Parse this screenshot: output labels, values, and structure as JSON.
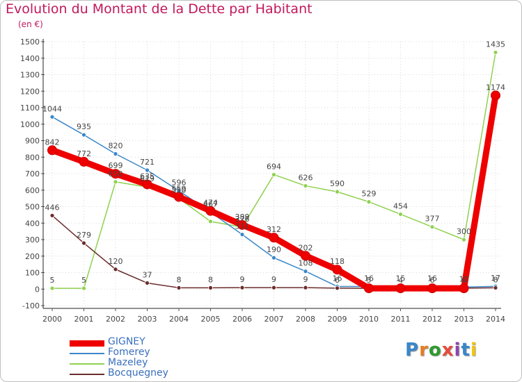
{
  "title": "Evolution du Montant de la Dette par Habitant",
  "subtitle": "(en €)",
  "logo": {
    "text": "Proxiti",
    "colors": [
      "#3a86c8",
      "#e67e22",
      "#2e9a2e",
      "#e74c3c",
      "#8e44ad",
      "#3a86c8",
      "#f1c40f"
    ]
  },
  "chart_data": {
    "type": "line",
    "title": "Evolution du Montant de la Dette par Habitant",
    "ylabel": "(en €)",
    "x": [
      "2000",
      "2001",
      "2002",
      "2003",
      "2004",
      "2005",
      "2006",
      "2007",
      "2008",
      "2009",
      "2010",
      "2011",
      "2012",
      "2013",
      "2014"
    ],
    "ylim": [
      -100,
      1500
    ],
    "yticks": [
      -100,
      0,
      100,
      200,
      300,
      400,
      500,
      600,
      700,
      800,
      900,
      1000,
      1100,
      1200,
      1300,
      1400,
      1500
    ],
    "grid": true,
    "legend_position": "bottom-left",
    "series": [
      {
        "name": "GIGNEY",
        "color": "#ee0000",
        "values": [
          842,
          772,
          699,
          635,
          559,
          474,
          389,
          312,
          202,
          118,
          5,
          5,
          5,
          5,
          1174
        ]
      },
      {
        "name": "Fomerey",
        "color": "#3a86c8",
        "values": [
          1044,
          935,
          820,
          721,
          596,
          467,
          331,
          190,
          108,
          16,
          16,
          15,
          16,
          12,
          17
        ]
      },
      {
        "name": "Mazeley",
        "color": "#8fd14f",
        "values": [
          5,
          5,
          650,
          619,
          550,
          410,
          376,
          694,
          626,
          590,
          529,
          454,
          377,
          300,
          1435
        ]
      },
      {
        "name": "Bocquegney",
        "color": "#6b2c2c",
        "values": [
          446,
          279,
          120,
          37,
          8,
          8,
          9,
          9,
          9,
          6,
          5,
          4,
          6,
          6,
          8
        ]
      }
    ],
    "data_labels": [
      {
        "series": "Fomerey",
        "index": 0,
        "text": "1044"
      },
      {
        "series": "Fomerey",
        "index": 1,
        "text": "935"
      },
      {
        "series": "Fomerey",
        "index": 2,
        "text": "820"
      },
      {
        "series": "Fomerey",
        "index": 3,
        "text": "721"
      },
      {
        "series": "Fomerey",
        "index": 4,
        "text": "596"
      },
      {
        "series": "GIGNEY",
        "index": 0,
        "text": "842"
      },
      {
        "series": "GIGNEY",
        "index": 1,
        "text": "772"
      },
      {
        "series": "GIGNEY",
        "index": 2,
        "text": "699"
      },
      {
        "series": "GIGNEY",
        "index": 3,
        "text": "635"
      },
      {
        "series": "GIGNEY",
        "index": 4,
        "text": "559"
      },
      {
        "series": "GIGNEY",
        "index": 5,
        "text": "474"
      },
      {
        "series": "GIGNEY",
        "index": 6,
        "text": "389"
      },
      {
        "series": "GIGNEY",
        "index": 7,
        "text": "312"
      },
      {
        "series": "GIGNEY",
        "index": 8,
        "text": "202"
      },
      {
        "series": "GIGNEY",
        "index": 9,
        "text": "118"
      },
      {
        "series": "GIGNEY",
        "index": 14,
        "text": "1174"
      },
      {
        "series": "Mazeley",
        "index": 0,
        "text": "5"
      },
      {
        "series": "Mazeley",
        "index": 1,
        "text": "5"
      },
      {
        "series": "Mazeley",
        "index": 2,
        "text": "650"
      },
      {
        "series": "Mazeley",
        "index": 3,
        "text": "619"
      },
      {
        "series": "Mazeley",
        "index": 4,
        "text": "550"
      },
      {
        "series": "Mazeley",
        "index": 6,
        "text": "376"
      },
      {
        "series": "Mazeley",
        "index": 7,
        "text": "694"
      },
      {
        "series": "Mazeley",
        "index": 8,
        "text": "626"
      },
      {
        "series": "Mazeley",
        "index": 9,
        "text": "590"
      },
      {
        "series": "Mazeley",
        "index": 10,
        "text": "529"
      },
      {
        "series": "Mazeley",
        "index": 11,
        "text": "454"
      },
      {
        "series": "Mazeley",
        "index": 12,
        "text": "377"
      },
      {
        "series": "Mazeley",
        "index": 13,
        "text": "300"
      },
      {
        "series": "Mazeley",
        "index": 14,
        "text": "1435"
      },
      {
        "series": "Fomerey",
        "index": 5,
        "text": "467"
      },
      {
        "series": "Fomerey",
        "index": 6,
        "text": "331"
      },
      {
        "series": "Fomerey",
        "index": 7,
        "text": "190"
      },
      {
        "series": "Fomerey",
        "index": 8,
        "text": "108"
      },
      {
        "series": "Fomerey",
        "index": 9,
        "text": "16"
      },
      {
        "series": "Fomerey",
        "index": 10,
        "text": "16"
      },
      {
        "series": "Fomerey",
        "index": 11,
        "text": "15"
      },
      {
        "series": "Fomerey",
        "index": 12,
        "text": "16"
      },
      {
        "series": "Fomerey",
        "index": 13,
        "text": "12"
      },
      {
        "series": "Fomerey",
        "index": 14,
        "text": "17"
      },
      {
        "series": "Bocquegney",
        "index": 0,
        "text": "446"
      },
      {
        "series": "Bocquegney",
        "index": 1,
        "text": "279"
      },
      {
        "series": "Bocquegney",
        "index": 2,
        "text": "120"
      },
      {
        "series": "Bocquegney",
        "index": 3,
        "text": "37"
      },
      {
        "series": "Bocquegney",
        "index": 4,
        "text": "8"
      },
      {
        "series": "Bocquegney",
        "index": 5,
        "text": "8"
      },
      {
        "series": "Bocquegney",
        "index": 6,
        "text": "9"
      },
      {
        "series": "Bocquegney",
        "index": 7,
        "text": "9"
      },
      {
        "series": "Bocquegney",
        "index": 8,
        "text": "9"
      },
      {
        "series": "Bocquegney",
        "index": 9,
        "text": "6"
      },
      {
        "series": "Bocquegney",
        "index": 10,
        "text": "5"
      },
      {
        "series": "Bocquegney",
        "index": 11,
        "text": "4"
      },
      {
        "series": "Bocquegney",
        "index": 12,
        "text": "6"
      },
      {
        "series": "Bocquegney",
        "index": 13,
        "text": "6"
      },
      {
        "series": "Bocquegney",
        "index": 14,
        "text": "8"
      }
    ]
  }
}
